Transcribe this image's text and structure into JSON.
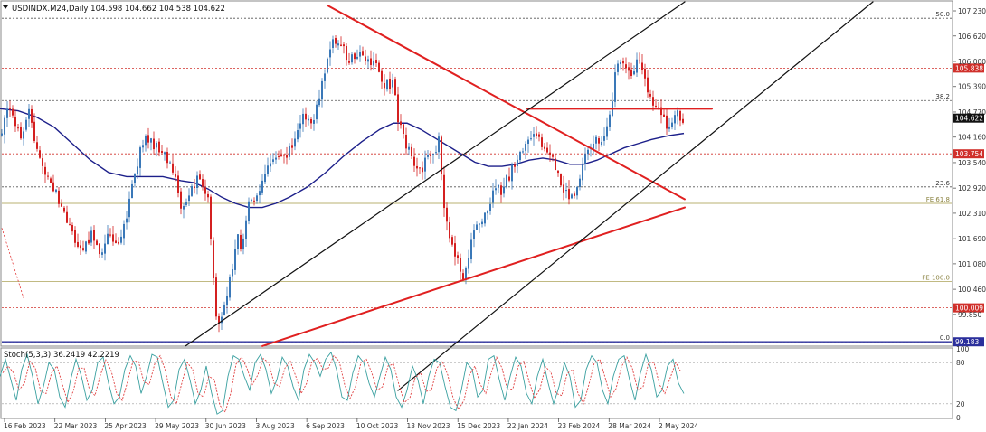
{
  "window": {
    "symbol_line": "USDINDX.M24,Daily  104.598 104.662 104.538 104.622"
  },
  "colors": {
    "bull": "#3a78b8",
    "bear": "#d42020",
    "ma": "#1c1f8a",
    "trend_red": "#e02020",
    "channel": "#111111",
    "fib": "#555555",
    "fe": "#b8b070",
    "level_red": "#d0302b",
    "current_price_bg": "#111111",
    "stoch_main": "#3aa0a0",
    "stoch_signal": "#e04040",
    "grid_text": "#333333"
  },
  "chart_data": [
    {
      "type": "candlestick",
      "title": "USDINDX.M24,Daily  104.598 104.662 104.538 104.622",
      "price_axis_ticks": [
        "107.230",
        "106.620",
        "106.000",
        "105.390",
        "104.770",
        "104.160",
        "103.540",
        "102.920",
        "102.310",
        "101.690",
        "101.080",
        "100.460",
        "99.850"
      ],
      "ylim": [
        99.1,
        107.45
      ],
      "date_labels": [
        "16 Feb 2023",
        "22 Mar 2023",
        "25 Apr 2023",
        "29 May 2023",
        "30 Jun 2023",
        "3 Aug 2023",
        "6 Sep 2023",
        "10 Oct 2023",
        "13 Nov 2023",
        "15 Dec 2023",
        "22 Jan 2024",
        "23 Feb 2024",
        "28 Mar 2024",
        "2 May 2024"
      ],
      "close_path": [
        [
          0,
          104.2
        ],
        [
          8,
          104.9
        ],
        [
          16,
          104.5
        ],
        [
          24,
          104.1
        ],
        [
          32,
          104.9
        ],
        [
          40,
          103.8
        ],
        [
          50,
          103.3
        ],
        [
          60,
          102.9
        ],
        [
          70,
          102.4
        ],
        [
          80,
          101.8
        ],
        [
          90,
          101.3
        ],
        [
          100,
          101.8
        ],
        [
          110,
          101.4
        ],
        [
          120,
          101.7
        ],
        [
          130,
          101.4
        ],
        [
          140,
          102.2
        ],
        [
          150,
          103.4
        ],
        [
          160,
          104.2
        ],
        [
          170,
          104.0
        ],
        [
          180,
          103.8
        ],
        [
          190,
          103.5
        ],
        [
          200,
          102.4
        ],
        [
          210,
          102.8
        ],
        [
          220,
          103.2
        ],
        [
          230,
          102.6
        ],
        [
          236,
          100.8
        ],
        [
          240,
          99.5
        ],
        [
          246,
          99.9
        ],
        [
          255,
          100.7
        ],
        [
          262,
          101.7
        ],
        [
          268,
          101.5
        ],
        [
          275,
          102.6
        ],
        [
          285,
          102.8
        ],
        [
          295,
          103.3
        ],
        [
          305,
          103.6
        ],
        [
          315,
          103.7
        ],
        [
          325,
          104.0
        ],
        [
          335,
          104.6
        ],
        [
          345,
          104.5
        ],
        [
          355,
          105.3
        ],
        [
          365,
          106.4
        ],
        [
          375,
          106.5
        ],
        [
          385,
          106.0
        ],
        [
          395,
          106.2
        ],
        [
          405,
          106.0
        ],
        [
          415,
          105.9
        ],
        [
          425,
          105.4
        ],
        [
          435,
          105.5
        ],
        [
          440,
          104.6
        ],
        [
          445,
          104.2
        ],
        [
          455,
          103.7
        ],
        [
          462,
          103.2
        ],
        [
          470,
          103.6
        ],
        [
          478,
          103.7
        ],
        [
          485,
          104.1
        ],
        [
          490,
          102.7
        ],
        [
          495,
          101.8
        ],
        [
          502,
          101.4
        ],
        [
          508,
          101.0
        ],
        [
          512,
          100.7
        ],
        [
          518,
          101.3
        ],
        [
          525,
          101.9
        ],
        [
          535,
          102.3
        ],
        [
          545,
          102.8
        ],
        [
          555,
          102.9
        ],
        [
          565,
          103.3
        ],
        [
          575,
          103.8
        ],
        [
          585,
          104.2
        ],
        [
          595,
          104.1
        ],
        [
          605,
          103.8
        ],
        [
          615,
          103.4
        ],
        [
          622,
          103.0
        ],
        [
          630,
          102.5
        ],
        [
          638,
          103.0
        ],
        [
          645,
          103.6
        ],
        [
          655,
          104.0
        ],
        [
          665,
          104.1
        ],
        [
          670,
          104.2
        ],
        [
          675,
          104.7
        ],
        [
          680,
          105.6
        ],
        [
          685,
          106.0
        ],
        [
          690,
          106.0
        ],
        [
          695,
          105.7
        ],
        [
          700,
          105.6
        ],
        [
          705,
          106.1
        ],
        [
          710,
          105.7
        ],
        [
          715,
          105.3
        ],
        [
          720,
          105.0
        ],
        [
          728,
          104.8
        ],
        [
          733,
          104.6
        ],
        [
          738,
          104.3
        ],
        [
          743,
          104.4
        ],
        [
          748,
          104.9
        ],
        [
          752,
          104.6
        ],
        [
          756,
          104.62
        ]
      ],
      "moving_average_path": [
        [
          0,
          104.85
        ],
        [
          20,
          104.8
        ],
        [
          40,
          104.65
        ],
        [
          60,
          104.4
        ],
        [
          80,
          104.0
        ],
        [
          100,
          103.6
        ],
        [
          120,
          103.3
        ],
        [
          140,
          103.2
        ],
        [
          160,
          103.2
        ],
        [
          180,
          103.2
        ],
        [
          200,
          103.1
        ],
        [
          215,
          103.05
        ],
        [
          230,
          102.9
        ],
        [
          245,
          102.7
        ],
        [
          260,
          102.55
        ],
        [
          275,
          102.45
        ],
        [
          290,
          102.45
        ],
        [
          305,
          102.55
        ],
        [
          320,
          102.7
        ],
        [
          340,
          102.95
        ],
        [
          360,
          103.3
        ],
        [
          380,
          103.7
        ],
        [
          400,
          104.05
        ],
        [
          420,
          104.35
        ],
        [
          435,
          104.5
        ],
        [
          450,
          104.5
        ],
        [
          465,
          104.35
        ],
        [
          480,
          104.15
        ],
        [
          495,
          103.95
        ],
        [
          510,
          103.75
        ],
        [
          525,
          103.55
        ],
        [
          540,
          103.45
        ],
        [
          555,
          103.45
        ],
        [
          570,
          103.5
        ],
        [
          585,
          103.6
        ],
        [
          600,
          103.65
        ],
        [
          615,
          103.6
        ],
        [
          630,
          103.5
        ],
        [
          645,
          103.5
        ],
        [
          660,
          103.6
        ],
        [
          675,
          103.75
        ],
        [
          690,
          103.9
        ],
        [
          705,
          104.0
        ],
        [
          720,
          104.1
        ],
        [
          740,
          104.2
        ],
        [
          756,
          104.25
        ]
      ],
      "horizontal_levels": [
        {
          "price": 107.05,
          "label": "50.0",
          "style": "fib"
        },
        {
          "price": 105.838,
          "label": "105.838",
          "style": "red-tag"
        },
        {
          "price": 105.05,
          "label": "38.2",
          "style": "fib"
        },
        {
          "price": 103.754,
          "label": "103.754",
          "style": "red-tag"
        },
        {
          "price": 102.95,
          "label": "23.6",
          "style": "fib"
        },
        {
          "price": 102.55,
          "label": "FE 61.8",
          "style": "fe"
        },
        {
          "price": 100.65,
          "label": "FE 100.0",
          "style": "fe"
        },
        {
          "price": 100.009,
          "label": "100.009",
          "style": "red-tag"
        },
        {
          "price": 99.183,
          "label": "0.0",
          "style": "fib"
        },
        {
          "price": 99.183,
          "label": "99.183",
          "style": "navy-tag"
        }
      ],
      "current_price": "104.622",
      "trendlines": [
        {
          "from": [
            363,
            107.35
          ],
          "to": [
            757,
            102.65
          ],
          "color": "red"
        },
        {
          "from": [
            290,
            99.08
          ],
          "to": [
            757,
            102.45
          ],
          "color": "red"
        },
        {
          "from": [
            583,
            104.85
          ],
          "to": [
            787,
            104.85
          ],
          "color": "red"
        },
        {
          "from": [
            205,
            99.08
          ],
          "to": [
            757,
            107.45
          ],
          "color": "black"
        },
        {
          "from": [
            440,
            98.0
          ],
          "to": [
            965,
            107.45
          ],
          "color": "black"
        }
      ]
    },
    {
      "type": "line",
      "title": "Stoch(5,3,3) 36.2419 42.2219",
      "ylim": [
        0,
        100
      ],
      "axis_ticks": [
        "100",
        "80",
        "20",
        "0"
      ],
      "series": [
        {
          "name": "Main",
          "x": [
            0,
            6,
            12,
            18,
            24,
            30,
            36,
            42,
            48,
            54,
            60,
            66,
            72,
            78,
            84,
            90,
            96,
            102,
            108,
            114,
            120,
            126,
            132,
            138,
            144,
            150,
            156,
            162,
            168,
            174,
            180,
            186,
            192,
            198,
            204,
            210,
            216,
            222,
            228,
            234,
            240,
            246,
            252,
            258,
            264,
            270,
            276,
            282,
            288,
            294,
            300,
            306,
            312,
            318,
            324,
            330,
            336,
            342,
            348,
            354,
            360,
            366,
            372,
            378,
            384,
            390,
            396,
            402,
            408,
            414,
            420,
            426,
            432,
            438,
            444,
            450,
            456,
            462,
            468,
            474,
            480,
            486,
            492,
            498,
            504,
            510,
            516,
            522,
            528,
            534,
            540,
            546,
            552,
            558,
            564,
            570,
            576,
            582,
            588,
            594,
            600,
            606,
            612,
            618,
            624,
            630,
            636,
            642,
            648,
            654,
            660,
            666,
            672,
            678,
            684,
            690,
            696,
            702,
            708,
            714,
            720,
            726,
            732,
            738,
            744,
            750,
            756
          ],
          "values": [
            60,
            85,
            55,
            25,
            70,
            92,
            60,
            20,
            45,
            80,
            70,
            30,
            15,
            55,
            85,
            60,
            25,
            40,
            80,
            88,
            50,
            20,
            30,
            70,
            90,
            75,
            35,
            60,
            92,
            88,
            50,
            15,
            25,
            70,
            85,
            55,
            20,
            40,
            75,
            35,
            5,
            10,
            60,
            90,
            85,
            60,
            40,
            80,
            92,
            70,
            35,
            55,
            88,
            75,
            45,
            25,
            70,
            92,
            80,
            60,
            85,
            95,
            70,
            30,
            25,
            65,
            90,
            80,
            50,
            30,
            60,
            88,
            70,
            30,
            15,
            40,
            75,
            55,
            20,
            60,
            85,
            80,
            45,
            15,
            10,
            40,
            80,
            70,
            30,
            40,
            85,
            90,
            55,
            25,
            60,
            88,
            75,
            35,
            20,
            60,
            85,
            50,
            20,
            45,
            80,
            60,
            15,
            25,
            70,
            90,
            80,
            40,
            20,
            60,
            85,
            90,
            55,
            25,
            65,
            92,
            70,
            30,
            40,
            75,
            85,
            50,
            35
          ]
        },
        {
          "name": "Signal",
          "x": [
            3,
            9,
            15,
            21,
            27,
            33,
            39,
            45,
            51,
            57,
            63,
            69,
            75,
            81,
            87,
            93,
            99,
            105,
            111,
            117,
            123,
            129,
            135,
            141,
            147,
            153,
            159,
            165,
            171,
            177,
            183,
            189,
            195,
            201,
            207,
            213,
            219,
            225,
            231,
            237,
            243,
            249,
            255,
            261,
            267,
            273,
            279,
            285,
            291,
            297,
            303,
            309,
            315,
            321,
            327,
            333,
            339,
            345,
            351,
            357,
            363,
            369,
            375,
            381,
            387,
            393,
            399,
            405,
            411,
            417,
            423,
            429,
            435,
            441,
            447,
            453,
            459,
            465,
            471,
            477,
            483,
            489,
            495,
            501,
            507,
            513,
            519,
            525,
            531,
            537,
            543,
            549,
            555,
            561,
            567,
            573,
            579,
            585,
            591,
            597,
            603,
            609,
            615,
            621,
            627,
            633,
            639,
            645,
            651,
            657,
            663,
            669,
            675,
            681,
            687,
            693,
            699,
            705,
            711,
            717,
            723,
            729,
            735,
            741,
            747,
            753
          ],
          "values": [
            65,
            75,
            65,
            40,
            50,
            82,
            72,
            38,
            35,
            65,
            75,
            48,
            22,
            38,
            72,
            72,
            40,
            32,
            62,
            84,
            68,
            35,
            25,
            52,
            82,
            82,
            52,
            48,
            78,
            90,
            68,
            30,
            20,
            50,
            80,
            70,
            35,
            30,
            60,
            55,
            18,
            8,
            35,
            78,
            88,
            72,
            48,
            62,
            86,
            80,
            50,
            45,
            72,
            82,
            60,
            35,
            50,
            82,
            86,
            70,
            72,
            90,
            82,
            48,
            28,
            45,
            80,
            85,
            65,
            40,
            45,
            75,
            78,
            48,
            22,
            28,
            58,
            65,
            38,
            40,
            72,
            82,
            62,
            28,
            12,
            25,
            62,
            75,
            48,
            35,
            65,
            88,
            72,
            40,
            42,
            75,
            82,
            52,
            28,
            42,
            74,
            66,
            35,
            32,
            64,
            70,
            35,
            20,
            48,
            80,
            85,
            58,
            30,
            42,
            74,
            88,
            72,
            40,
            45,
            80,
            80,
            48,
            35,
            58,
            80,
            66
          ]
        }
      ]
    }
  ]
}
